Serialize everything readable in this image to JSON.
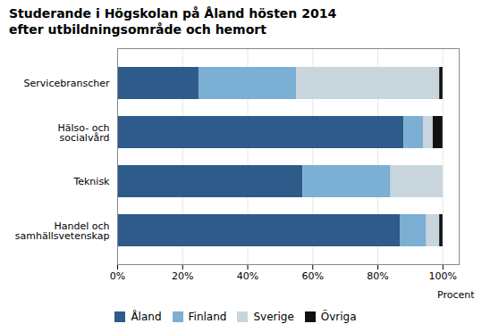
{
  "chart_data": {
    "type": "bar",
    "orientation": "horizontal",
    "stacked": true,
    "title": "Studerande i Högskolan på Åland hösten 2014\nefter utbildningsområde och hemort",
    "xlabel": "Procent",
    "categories": [
      "Handel och\nsamhällsvetenskap",
      "Teknisk",
      "Hälso- och\nsocialvård",
      "Servicebranscher"
    ],
    "series": [
      {
        "name": "Åland",
        "color": "#2E5B8A",
        "values": [
          87,
          57,
          88,
          25
        ]
      },
      {
        "name": "Finland",
        "color": "#7BAFD4",
        "values": [
          8,
          27,
          6,
          30
        ]
      },
      {
        "name": "Sverige",
        "color": "#C8D5DC",
        "values": [
          4,
          16,
          3,
          44
        ]
      },
      {
        "name": "Övriga",
        "color": "#111111",
        "values": [
          1,
          0,
          3,
          1
        ]
      }
    ],
    "xlim": [
      0,
      105
    ],
    "xticks": [
      {
        "value": 0,
        "label": "0%"
      },
      {
        "value": 20,
        "label": "20%"
      },
      {
        "value": 40,
        "label": "40%"
      },
      {
        "value": 60,
        "label": "60%"
      },
      {
        "value": 80,
        "label": "80%"
      },
      {
        "value": 100,
        "label": "100%"
      }
    ],
    "grid": true,
    "legend": "bottom"
  }
}
